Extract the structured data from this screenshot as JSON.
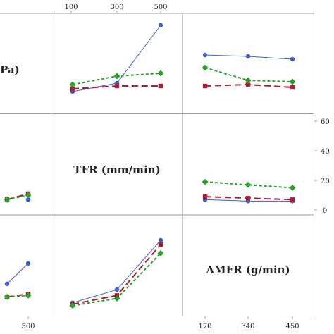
{
  "chart_data": {
    "type": "line",
    "diagonal_labels": {
      "cell_0": "Pa)",
      "cell_1": "TFR (mm/min)",
      "cell_2": "AMFR (g/min)"
    },
    "top_axis_ticks": [
      "100",
      "300",
      "500"
    ],
    "right_axis_ticks": [
      "60",
      "40",
      "20",
      "0"
    ],
    "bottom_axis_ticks_col0": [
      "500"
    ],
    "bottom_axis_ticks_col2": [
      "170",
      "340",
      "450"
    ],
    "y_range": [
      0,
      60
    ],
    "panels": [
      {
        "id": "row0-col1",
        "x_categories": [
          "100",
          "300",
          "500"
        ],
        "series": [
          {
            "color": "#3a5fd0",
            "marker": "circle",
            "values": [
              10,
              16,
              57
            ]
          },
          {
            "color": "#b01c2e",
            "marker": "square",
            "values": [
              12,
              14,
              14
            ]
          },
          {
            "color": "#2aa12a",
            "marker": "diamond",
            "values": [
              15,
              21,
              23
            ]
          }
        ]
      },
      {
        "id": "row0-col2",
        "x_categories": [
          "170",
          "340",
          "450"
        ],
        "series": [
          {
            "color": "#3a5fd0",
            "marker": "circle",
            "values": [
              36,
              35,
              33
            ]
          },
          {
            "color": "#b01c2e",
            "marker": "square",
            "values": [
              14,
              15,
              13
            ]
          },
          {
            "color": "#2aa12a",
            "marker": "diamond",
            "values": [
              27,
              18,
              17
            ]
          }
        ]
      },
      {
        "id": "row1-col0",
        "x_categories": [
          "",
          "",
          "500"
        ],
        "series": [
          {
            "color": "#3a5fd0",
            "marker": "circle",
            "values": [
              null,
              null,
              7
            ]
          },
          {
            "color": "#b01c2e",
            "marker": "square",
            "values": [
              null,
              7,
              11
            ]
          },
          {
            "color": "#2aa12a",
            "marker": "diamond",
            "values": [
              null,
              7,
              10
            ]
          }
        ]
      },
      {
        "id": "row1-col2",
        "x_categories": [
          "170",
          "340",
          "450"
        ],
        "series": [
          {
            "color": "#3a5fd0",
            "marker": "circle",
            "values": [
              7,
              6,
              6
            ]
          },
          {
            "color": "#b01c2e",
            "marker": "square",
            "values": [
              9,
              8,
              7
            ]
          },
          {
            "color": "#2aa12a",
            "marker": "diamond",
            "values": [
              19,
              17,
              15
            ]
          }
        ]
      },
      {
        "id": "row2-col0",
        "x_categories": [
          "",
          "",
          "500"
        ],
        "series": [
          {
            "color": "#3a5fd0",
            "marker": "circle",
            "values": [
              null,
              18,
              32
            ]
          },
          {
            "color": "#b01c2e",
            "marker": "square",
            "values": [
              null,
              9,
              11
            ]
          },
          {
            "color": "#2aa12a",
            "marker": "diamond",
            "values": [
              null,
              9,
              10
            ]
          }
        ]
      },
      {
        "id": "row2-col1",
        "x_categories": [
          "100",
          "300",
          "500"
        ],
        "series": [
          {
            "color": "#3a5fd0",
            "marker": "circle",
            "values": [
              5,
              14,
              48
            ]
          },
          {
            "color": "#b01c2e",
            "marker": "square",
            "values": [
              4,
              10,
              45
            ]
          },
          {
            "color": "#2aa12a",
            "marker": "diamond",
            "values": [
              3,
              8,
              39
            ]
          }
        ]
      }
    ]
  }
}
